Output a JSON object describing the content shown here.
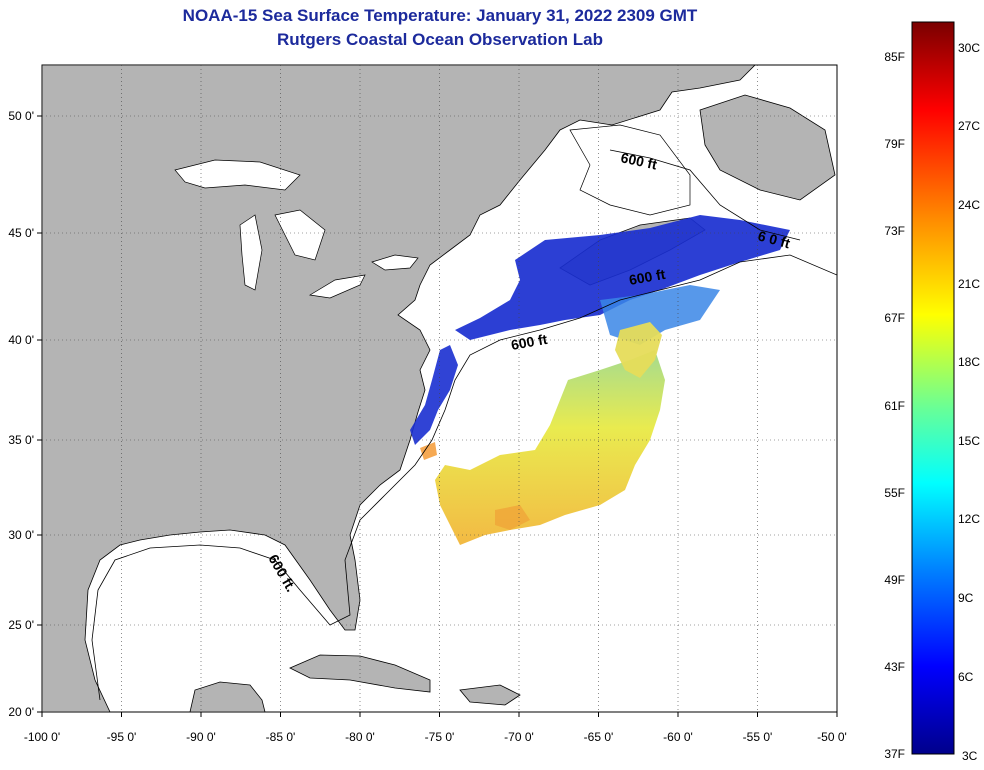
{
  "header": {
    "title": "NOAA-15 Sea Surface Temperature:  January 31, 2022 2309 GMT",
    "subtitle": "Rutgers Coastal Ocean Observation Lab"
  },
  "map": {
    "lon_range": [
      -100,
      -50
    ],
    "lat_range": [
      20,
      52
    ],
    "x_ticks": [
      "-100 0'",
      "-95 0'",
      "-90 0'",
      "-85 0'",
      "-80 0'",
      "-75 0'",
      "-70 0'",
      "-65 0'",
      "-60 0'",
      "-55 0'",
      "-50 0'"
    ],
    "y_ticks": [
      "20 0'",
      "25 0'",
      "30 0'",
      "35 0'",
      "40 0'",
      "45 0'",
      "50 0'"
    ],
    "contour_labels": [
      "600 ft",
      "6 0 ft",
      "600 ft",
      "600 ft",
      "600 ft."
    ],
    "land_color": "#b4b4b4",
    "ocean_color": "#ffffff",
    "grid": "dotted"
  },
  "colorbar": {
    "f_labels": [
      "85F",
      "79F",
      "73F",
      "67F",
      "61F",
      "55F",
      "49F",
      "43F",
      "37F"
    ],
    "c_labels": [
      "30C",
      "27C",
      "24C",
      "21C",
      "18C",
      "15C",
      "12C",
      "9C",
      "6C",
      "3C"
    ],
    "colors": [
      "#7a0000",
      "#ff0000",
      "#ff8c00",
      "#ffff00",
      "#66ff99",
      "#00ffff",
      "#0080ff",
      "#0000ff",
      "#00008b"
    ]
  }
}
